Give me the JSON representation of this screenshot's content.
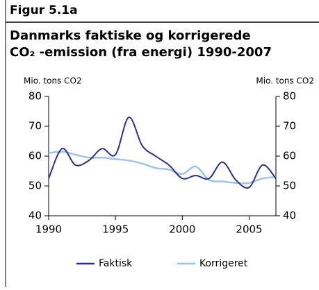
{
  "chart_data": {
    "type": "line",
    "figure_label": "Figur 5.1a",
    "title_lines": [
      "Danmarks faktiske og korrigerede",
      "CO₂ -emission (fra energi) 1990-2007"
    ],
    "ylabel": "Mio. tons CO2",
    "y2label": "Mio. tons CO2",
    "x": [
      1990,
      1991,
      1992,
      1993,
      1994,
      1995,
      1996,
      1997,
      1998,
      1999,
      2000,
      2001,
      2002,
      2003,
      2004,
      2005,
      2006,
      2007
    ],
    "xlim": [
      1990,
      2007
    ],
    "xticks": [
      1990,
      1995,
      2000,
      2005
    ],
    "ylim": [
      40,
      80
    ],
    "yticks": [
      40,
      50,
      60,
      70,
      80
    ],
    "y2lim": [
      40,
      80
    ],
    "y2ticks": [
      40,
      50,
      60,
      70,
      80
    ],
    "legend": "bottom",
    "series": [
      {
        "name": "Faktisk",
        "color": "#2b2f86",
        "values": [
          52.5,
          62.5,
          57,
          58.5,
          62.5,
          60.5,
          73,
          63.5,
          60,
          57,
          52.5,
          53.5,
          52.5,
          58,
          52,
          49.5,
          57,
          52.5
        ]
      },
      {
        "name": "Korrigeret",
        "color": "#9dc3ea",
        "values": [
          61,
          61.5,
          60.5,
          59.5,
          59.5,
          59,
          58.5,
          57.5,
          56,
          55.5,
          54,
          56.5,
          52,
          51.5,
          51,
          51,
          52.5,
          53
        ]
      }
    ]
  }
}
